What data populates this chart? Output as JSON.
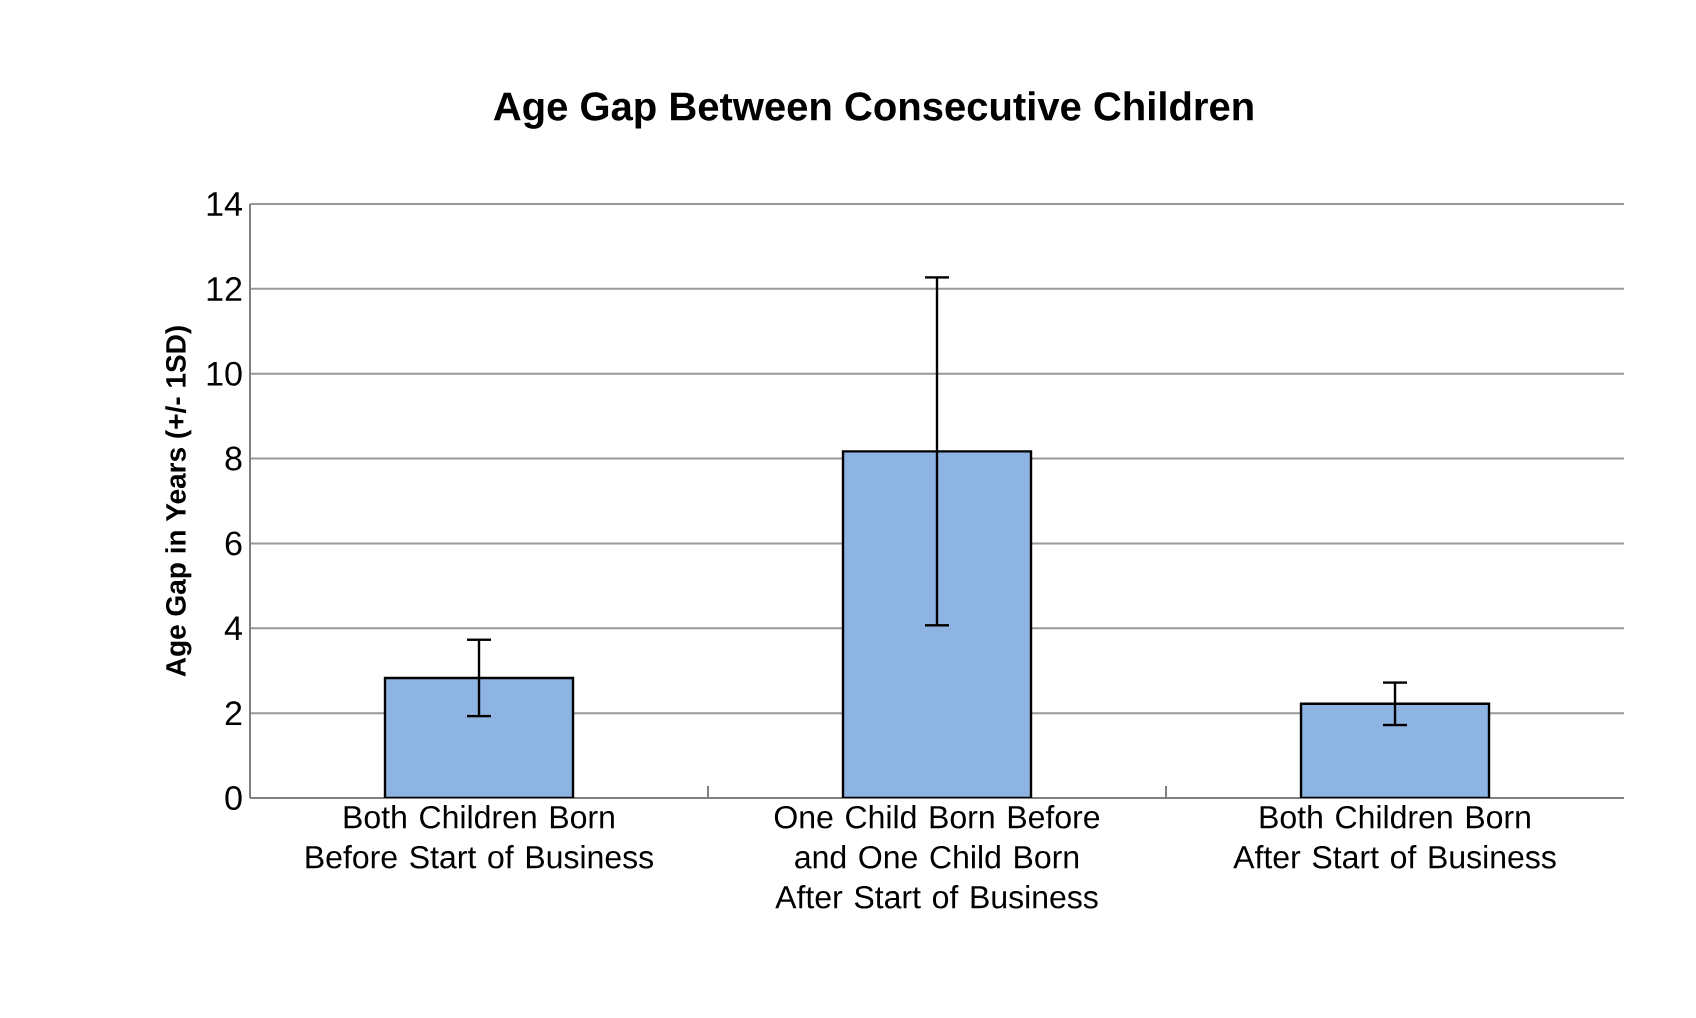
{
  "chart_data": {
    "type": "bar",
    "title": "Age Gap Between Consecutive Children",
    "ylabel": "Age Gap in Years (+/- 1SD)",
    "categories": [
      "Both Children Born Before Start of Business",
      "One Child Born Before and One Child Born After Start of Business",
      "Both Children Born After Start of Business"
    ],
    "values": [
      2.83,
      8.17,
      2.22
    ],
    "errors": [
      0.9,
      4.1,
      0.5
    ],
    "color": "#8eb4e3",
    "ylim": [
      0,
      14
    ],
    "yticks": [
      0,
      2,
      4,
      6,
      8,
      10,
      12,
      14
    ],
    "grid": "y"
  }
}
